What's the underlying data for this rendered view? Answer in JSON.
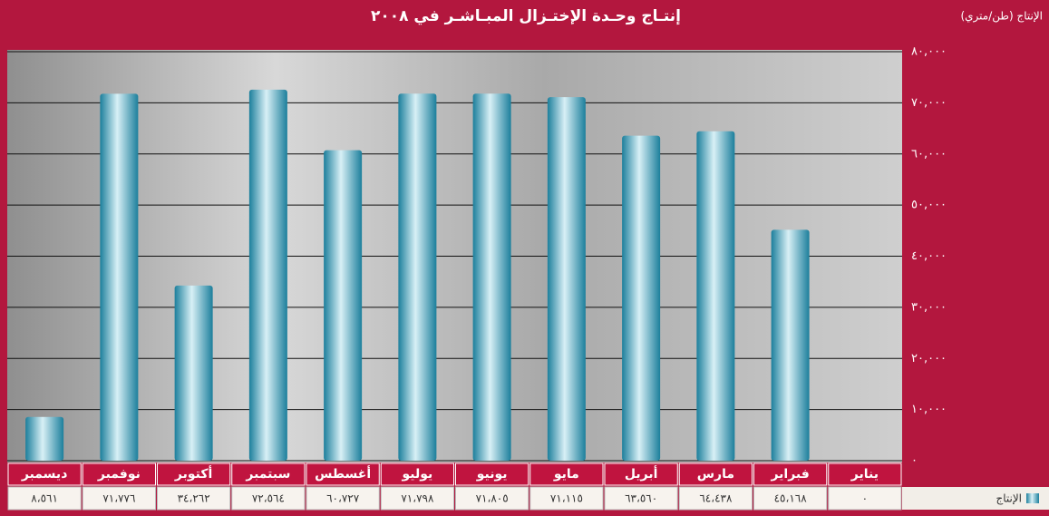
{
  "chart_data": {
    "type": "bar",
    "title": "إنتـاج وحـدة الإختـزال المبـاشـر في ٢٠٠٨",
    "y_label": "الإنتاج (طن/متري)",
    "categories": [
      "يناير",
      "فبراير",
      "مارس",
      "أبريل",
      "مايو",
      "يونيو",
      "يوليو",
      "أغسطس",
      "سبتمبر",
      "أكتوبر",
      "نوفمبر",
      "ديسمبر"
    ],
    "series": [
      {
        "name": "الإنتاج",
        "color": "#1c7f9c",
        "values": [
          0,
          45168,
          64438,
          63560,
          71115,
          71805,
          71798,
          60727,
          72564,
          34262,
          71776,
          8561
        ],
        "value_labels": [
          "٠",
          "٤٥،١٦٨",
          "٦٤،٤٣٨",
          "٦٣،٥٦٠",
          "٧١،١١٥",
          "٧١،٨٠٥",
          "٧١،٧٩٨",
          "٦٠،٧٢٧",
          "٧٢،٥٦٤",
          "٣٤،٢٦٢",
          "٧١،٧٧٦",
          "٨،٥٦١"
        ]
      }
    ],
    "ylim": [
      0,
      80000
    ],
    "yticks": [
      {
        "value": 0,
        "label": "٠"
      },
      {
        "value": 10000,
        "label": "١٠,٠٠٠"
      },
      {
        "value": 20000,
        "label": "٢٠,٠٠٠"
      },
      {
        "value": 30000,
        "label": "٣٠,٠٠٠"
      },
      {
        "value": 40000,
        "label": "٤٠,٠٠٠"
      },
      {
        "value": 50000,
        "label": "٥٠,٠٠٠"
      },
      {
        "value": 60000,
        "label": "٦٠,٠٠٠"
      },
      {
        "value": 70000,
        "label": "٧٠,٠٠٠"
      },
      {
        "value": 80000,
        "label": "٨٠,٠٠٠"
      }
    ],
    "grid": true
  }
}
